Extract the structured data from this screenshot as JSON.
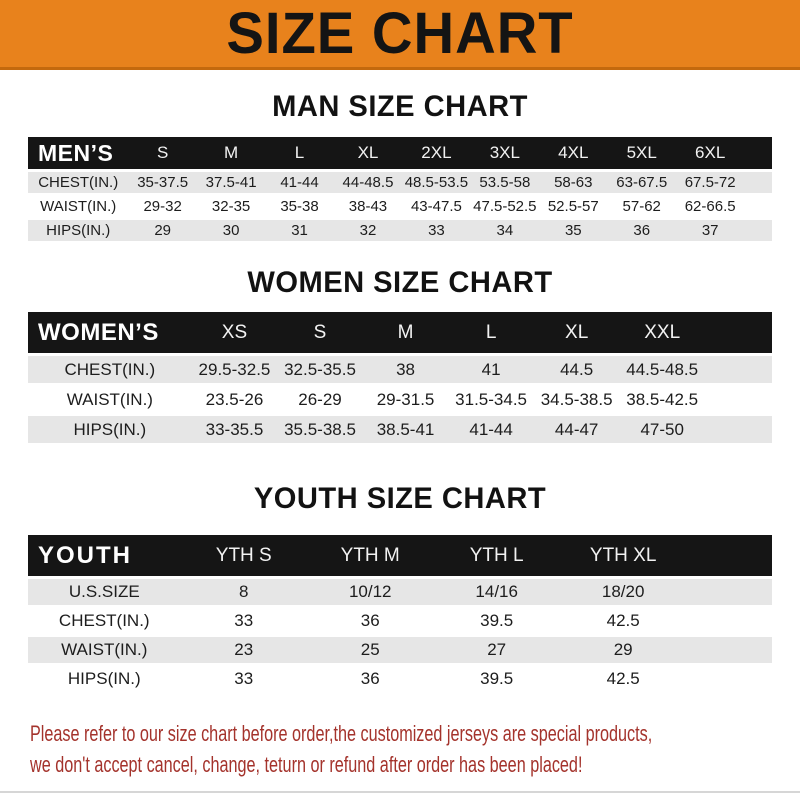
{
  "banner": {
    "title": "SIZE CHART"
  },
  "sections": [
    {
      "heading": "MAN SIZE CHART",
      "table": {
        "label": "MEN’S",
        "columns": [
          "S",
          "M",
          "L",
          "XL",
          "2XL",
          "3XL",
          "4XL",
          "5XL",
          "6XL"
        ],
        "rows": [
          {
            "label": "CHEST(IN.)",
            "values": [
              "35-37.5",
              "37.5-41",
              "41-44",
              "44-48.5",
              "48.5-53.5",
              "53.5-58",
              "58-63",
              "63-67.5",
              "67.5-72"
            ]
          },
          {
            "label": "WAIST(IN.)",
            "values": [
              "29-32",
              "32-35",
              "35-38",
              "38-43",
              "43-47.5",
              "47.5-52.5",
              "52.5-57",
              "57-62",
              "62-66.5"
            ]
          },
          {
            "label": "HIPS(IN.)",
            "values": [
              "29",
              "30",
              "31",
              "32",
              "33",
              "34",
              "35",
              "36",
              "37"
            ]
          }
        ]
      }
    },
    {
      "heading": "WOMEN SIZE CHART",
      "table": {
        "label": "WOMEN’S",
        "columns": [
          "XS",
          "S",
          "M",
          "L",
          "XL",
          "XXL"
        ],
        "rows": [
          {
            "label": "CHEST(IN.)",
            "values": [
              "29.5-32.5",
              "32.5-35.5",
              "38",
              "41",
              "44.5",
              "44.5-48.5"
            ]
          },
          {
            "label": "WAIST(IN.)",
            "values": [
              "23.5-26",
              "26-29",
              "29-31.5",
              "31.5-34.5",
              "34.5-38.5",
              "38.5-42.5"
            ]
          },
          {
            "label": "HIPS(IN.)",
            "values": [
              "33-35.5",
              "35.5-38.5",
              "38.5-41",
              "41-44",
              "44-47",
              "47-50"
            ]
          }
        ]
      }
    },
    {
      "heading": "YOUTH SIZE CHART",
      "table": {
        "label": "YOUTH",
        "columns": [
          "YTH S",
          "YTH M",
          "YTH L",
          "YTH XL"
        ],
        "rows": [
          {
            "label": "U.S.SIZE",
            "values": [
              "8",
              "10/12",
              "14/16",
              "18/20"
            ]
          },
          {
            "label": "CHEST(IN.)",
            "values": [
              "33",
              "36",
              "39.5",
              "42.5"
            ]
          },
          {
            "label": "WAIST(IN.)",
            "values": [
              "23",
              "25",
              "27",
              "29"
            ]
          },
          {
            "label": "HIPS(IN.)",
            "values": [
              "33",
              "36",
              "39.5",
              "42.5"
            ]
          }
        ]
      }
    }
  ],
  "footer": {
    "line1": "Please refer to our size chart before order,the customized jerseys are special products,",
    "line2": "we don't accept cancel, change, teturn or refund after order has been placed!"
  },
  "colors": {
    "accent": "#E8821C",
    "banner_border": "#C4690D",
    "header_bar": "#151515",
    "row_stripe": "#E6E6E6",
    "notice_text": "#A4332C"
  }
}
